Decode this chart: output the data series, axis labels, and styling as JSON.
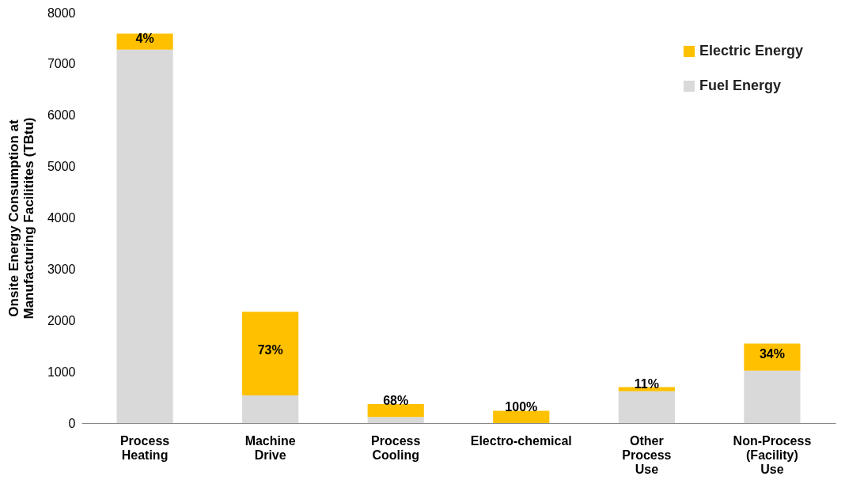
{
  "chart_data": {
    "type": "bar",
    "stacked": true,
    "ylabel": "Onsite Energy Consumption at Manufacturing Facilitites (TBtu)",
    "categories": [
      "Process Heating",
      "Machine Drive",
      "Process Cooling",
      "Electro-chemical",
      "Other Process Use",
      "Non-Process (Facility) Use"
    ],
    "series": [
      {
        "name": "Fuel Energy",
        "color": "#d9d9d9",
        "values": [
          7280,
          540,
          120,
          0,
          620,
          1020
        ]
      },
      {
        "name": "Electric Energy",
        "color": "#ffc000",
        "values": [
          310,
          1630,
          250,
          240,
          80,
          530
        ]
      }
    ],
    "ylim": [
      0,
      8000
    ],
    "yticks": [
      0,
      1000,
      2000,
      3000,
      4000,
      5000,
      6000,
      7000,
      8000
    ],
    "grid": false,
    "legend": "top right",
    "annotations": [
      "4%",
      "73%",
      "68%",
      "100%",
      "11%",
      "34%"
    ]
  }
}
